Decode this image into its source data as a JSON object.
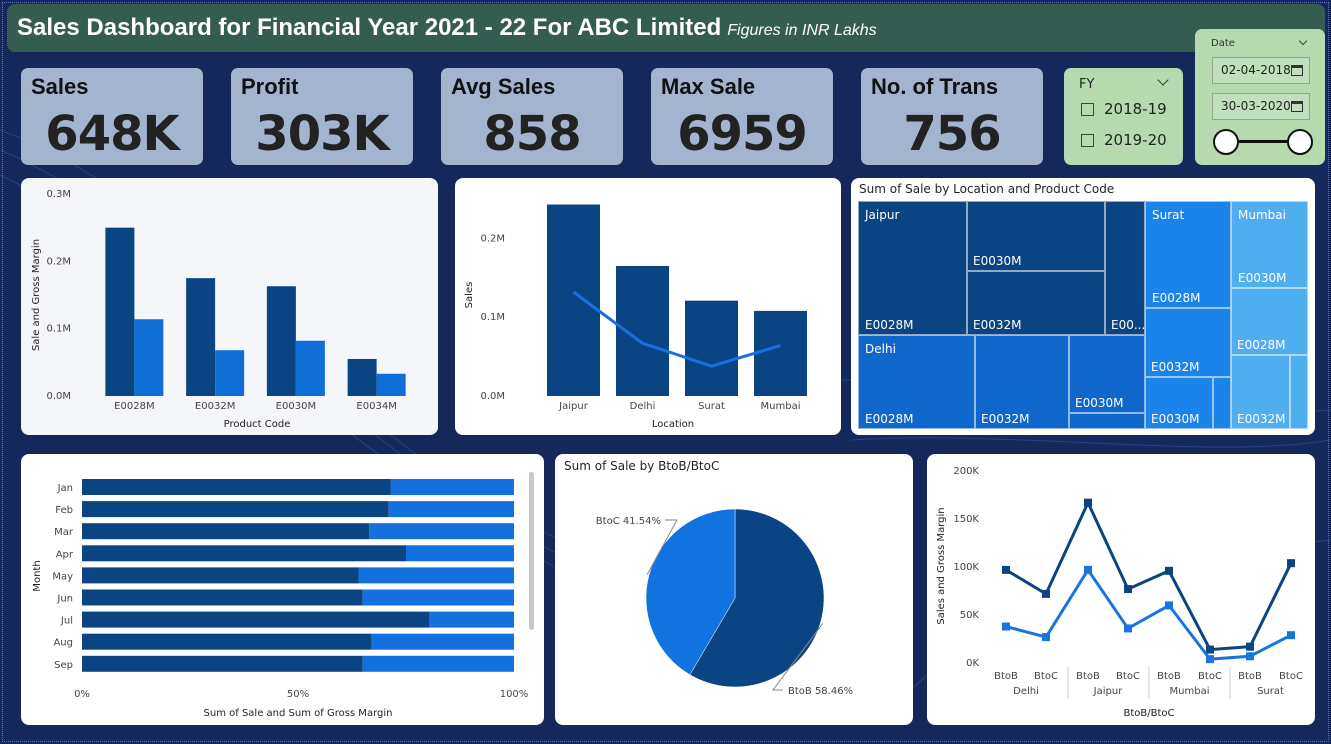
{
  "header": {
    "title": "Sales Dashboard for Financial Year 2021 - 22 For ABC Limited",
    "subtitle": "Figures in INR Lakhs"
  },
  "kpis": [
    {
      "label": "Sales",
      "value": "648K"
    },
    {
      "label": "Profit",
      "value": "303K"
    },
    {
      "label": "Avg Sales",
      "value": "858"
    },
    {
      "label": "Max Sale",
      "value": "6959"
    },
    {
      "label": "No. of Trans",
      "value": "756"
    }
  ],
  "fy_slicer": {
    "title": "FY",
    "options": [
      {
        "label": "2018-19",
        "checked": false
      },
      {
        "label": "2019-20",
        "checked": false
      }
    ]
  },
  "date_slicer": {
    "title": "Date",
    "start": "02-04-2018",
    "end": "30-03-2020",
    "range_fraction": [
      0,
      1
    ]
  },
  "colors": {
    "dark": "#0b4482",
    "mid": "#0f67cc",
    "light": "#1a84ea",
    "lighter": "#4eaeef"
  },
  "chart_data": [
    {
      "id": "sale_margin_by_product",
      "type": "bar",
      "title": "",
      "categories": [
        "E0028M",
        "E0032M",
        "E0030M",
        "E0034M"
      ],
      "series": [
        {
          "name": "",
          "values": [
            250000,
            175000,
            163000,
            55000
          ],
          "color": "#0b4482"
        },
        {
          "name": "",
          "values": [
            114000,
            68000,
            82000,
            33000
          ],
          "color": "#0f6fd6"
        }
      ],
      "xlabel": "Product Code",
      "ylabel": "Sale and Gross Margin",
      "yticks": [
        "0.0M",
        "0.1M",
        "0.2M",
        "0.3M"
      ],
      "ylim": [
        0,
        300000
      ]
    },
    {
      "id": "sales_by_location",
      "type": "bar",
      "title": "",
      "categories": [
        "Jaipur",
        "Delhi",
        "Surat",
        "Mumbai"
      ],
      "series": [
        {
          "name": "",
          "values": [
            243000,
            165000,
            121000,
            108000
          ],
          "color": "#0b4482"
        },
        {
          "name": "",
          "type": "line",
          "values": [
            132000,
            67000,
            38000,
            64000
          ],
          "color": "#1a6fe0"
        }
      ],
      "xlabel": "Location",
      "ylabel": "Sales",
      "yticks": [
        "0.0M",
        "0.1M",
        "0.2M"
      ],
      "ylim": [
        0,
        250000
      ]
    },
    {
      "id": "sale_by_location_product_treemap",
      "type": "heatmap",
      "title": "Sum of Sale by Location and Product Code",
      "groups": [
        {
          "name": "Jaipur",
          "items": [
            {
              "label": "E0028M"
            },
            {
              "label": "E0030M"
            },
            {
              "label": "E0032M"
            },
            {
              "label": "E00..."
            }
          ]
        },
        {
          "name": "Delhi",
          "items": [
            {
              "label": "E0028M"
            },
            {
              "label": "E0032M"
            },
            {
              "label": "E0030M"
            }
          ]
        },
        {
          "name": "Surat",
          "items": [
            {
              "label": "E0028M"
            },
            {
              "label": "E0032M"
            },
            {
              "label": "E0030M"
            }
          ]
        },
        {
          "name": "Mumbai",
          "items": [
            {
              "label": "E0030M"
            },
            {
              "label": "E0028M"
            },
            {
              "label": "E0032M"
            }
          ]
        }
      ]
    },
    {
      "id": "sale_margin_by_month",
      "type": "bar",
      "orientation": "horizontal-100-stacked",
      "title": "",
      "categories": [
        "Jan",
        "Feb",
        "Mar",
        "Apr",
        "May",
        "Jun",
        "Jul",
        "Aug",
        "Sep"
      ],
      "series": [
        {
          "name": "",
          "values": [
            71.5,
            71,
            66.5,
            75,
            64,
            65,
            80.5,
            67,
            65
          ],
          "color": "#0b4482"
        },
        {
          "name": "",
          "values": [
            28.5,
            29,
            33.5,
            25,
            36,
            35,
            19.5,
            33,
            35
          ],
          "color": "#1470dc"
        }
      ],
      "xlabel": "Sum of Sale and Sum of Gross Margin",
      "ylabel": "Month",
      "xticks": [
        "0%",
        "50%",
        "100%"
      ]
    },
    {
      "id": "sale_by_btob_btoc",
      "type": "pie",
      "title": "Sum of Sale by BtoB/BtoC",
      "slices": [
        {
          "label": "BtoB",
          "pct": 58.46,
          "text": "BtoB 58.46%",
          "color": "#0b4482"
        },
        {
          "label": "BtoC",
          "pct": 41.54,
          "text": "BtoC 41.54%",
          "color": "#1173e0"
        }
      ]
    },
    {
      "id": "sales_margin_by_channel_location",
      "type": "line",
      "title": "",
      "categories": [
        {
          "channel": "BtoB",
          "city": "Delhi"
        },
        {
          "channel": "BtoC",
          "city": "Delhi"
        },
        {
          "channel": "BtoB",
          "city": "Jaipur"
        },
        {
          "channel": "BtoC",
          "city": "Jaipur"
        },
        {
          "channel": "BtoB",
          "city": "Mumbai"
        },
        {
          "channel": "BtoC",
          "city": "Mumbai"
        },
        {
          "channel": "BtoB",
          "city": "Surat"
        },
        {
          "channel": "BtoC",
          "city": "Surat"
        }
      ],
      "groups": [
        "Delhi",
        "Jaipur",
        "Mumbai",
        "Surat"
      ],
      "series": [
        {
          "name": "",
          "values": [
            97000,
            72000,
            167000,
            77000,
            96000,
            14000,
            17000,
            104000
          ],
          "color": "#0b4482"
        },
        {
          "name": "",
          "values": [
            38000,
            27000,
            97000,
            36000,
            60000,
            4000,
            7000,
            29000
          ],
          "color": "#1a74e0"
        }
      ],
      "xlabel": "BtoB/BtoC",
      "ylabel": "Sales and Gross Margin",
      "yticks": [
        "0K",
        "50K",
        "100K",
        "150K",
        "200K"
      ],
      "ylim": [
        0,
        200000
      ]
    }
  ]
}
